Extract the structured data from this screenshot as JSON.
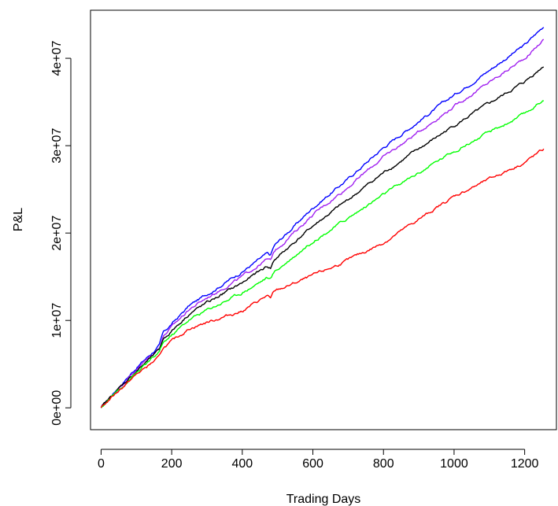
{
  "chart_data": {
    "type": "line",
    "xlabel": "Trading Days",
    "ylabel": "P&L",
    "xlim": [
      -30,
      1290
    ],
    "ylim": [
      -2500000,
      45500000
    ],
    "x_ticks": [
      0,
      200,
      400,
      600,
      800,
      1000,
      1200
    ],
    "x_tick_labels": [
      "0",
      "200",
      "400",
      "600",
      "800",
      "1000",
      "1200"
    ],
    "y_ticks": [
      0,
      10000000,
      20000000,
      30000000,
      40000000
    ],
    "y_tick_labels": [
      "0e+00",
      "1e+07",
      "2e+07",
      "3e+07",
      "4e+07"
    ],
    "grid": false,
    "box": true,
    "series": [
      {
        "color": "#0000ff",
        "x": [
          0,
          50,
          100,
          165,
          175,
          250,
          300,
          400,
          470,
          480,
          490,
          600,
          700,
          800,
          1000,
          1200,
          1255
        ],
        "values": [
          0,
          2400000,
          4600000,
          7100000,
          8500000,
          11700000,
          13000000,
          15600000,
          17600000,
          17400000,
          18500000,
          22900000,
          26200000,
          29800000,
          35800000,
          41500000,
          43700000
        ]
      },
      {
        "color": "#a020f0",
        "x": [
          0,
          50,
          100,
          165,
          175,
          250,
          300,
          400,
          470,
          480,
          490,
          600,
          700,
          800,
          1000,
          1200,
          1255
        ],
        "values": [
          0,
          2300000,
          4400000,
          6900000,
          8200000,
          11300000,
          12600000,
          15000000,
          17000000,
          16800000,
          17900000,
          22100000,
          25300000,
          28700000,
          34500000,
          40000000,
          42200000
        ]
      },
      {
        "color": "#000000",
        "x": [
          0,
          50,
          100,
          165,
          175,
          250,
          300,
          400,
          470,
          480,
          490,
          600,
          700,
          800,
          1000,
          1200,
          1255
        ],
        "values": [
          0,
          2200000,
          4200000,
          6600000,
          7800000,
          10800000,
          12000000,
          14300000,
          16200000,
          16000000,
          16900000,
          20800000,
          23800000,
          26900000,
          32300000,
          37300000,
          39200000
        ]
      },
      {
        "color": "#00ff00",
        "x": [
          0,
          50,
          100,
          165,
          175,
          250,
          300,
          400,
          470,
          480,
          490,
          600,
          700,
          800,
          1000,
          1200,
          1255
        ],
        "values": [
          0,
          2100000,
          4000000,
          6300000,
          7400000,
          10100000,
          11200000,
          13200000,
          14900000,
          14700000,
          15500000,
          19100000,
          21700000,
          24400000,
          29400000,
          33600000,
          35300000
        ]
      },
      {
        "color": "#ff0000",
        "x": [
          0,
          50,
          100,
          165,
          175,
          250,
          300,
          400,
          470,
          480,
          490,
          600,
          700,
          800,
          1000,
          1200,
          1255
        ],
        "values": [
          0,
          2000000,
          3800000,
          5800000,
          6800000,
          9100000,
          9800000,
          11100000,
          12800000,
          12400000,
          13300000,
          15100000,
          16900000,
          18900000,
          24200000,
          28100000,
          29600000
        ]
      }
    ]
  }
}
